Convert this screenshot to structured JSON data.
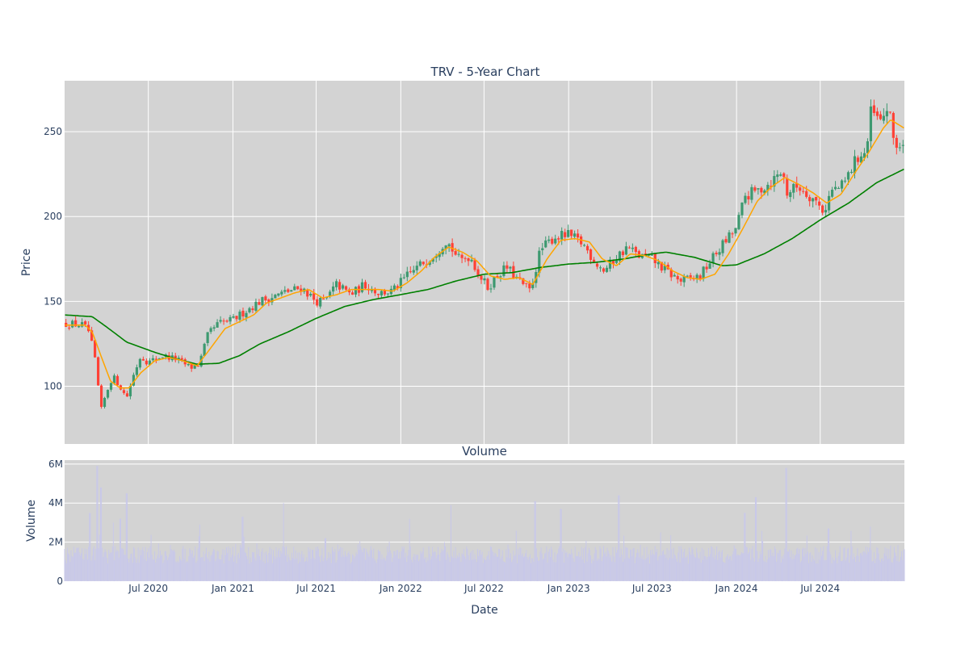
{
  "chart_data": {
    "type": "candlestick",
    "title": "TRV - 5-Year Chart",
    "subtitle": "Volume",
    "x_label": "Date",
    "y_label_price": "Price",
    "y_label_volume": "Volume",
    "x_range": [
      "2020-01-01",
      "2024-12-31"
    ],
    "x_ticks": [
      "2020-07-01",
      "2021-01-01",
      "2021-07-01",
      "2022-01-01",
      "2022-07-01",
      "2023-01-01",
      "2023-07-01",
      "2024-01-01",
      "2024-07-01"
    ],
    "x_tick_labels": [
      "Jul 2020",
      "Jan 2021",
      "Jul 2021",
      "Jan 2022",
      "Jul 2022",
      "Jan 2023",
      "Jul 2023",
      "Jan 2024",
      "Jul 2024"
    ],
    "price_range": [
      66,
      280
    ],
    "price_ticks": [
      100,
      150,
      200,
      250
    ],
    "volume_range": [
      0,
      6200000
    ],
    "volume_ticks": [
      0,
      2000000,
      4000000,
      6000000
    ],
    "volume_tick_labels": [
      "0",
      "2M",
      "4M",
      "6M"
    ],
    "grid": true,
    "colors": {
      "increasing": "#3d9970",
      "decreasing": "#ff4136",
      "ma_short": "#ffa500",
      "ma_long": "#008000",
      "volume": "#c8c8ea",
      "plot_bg": "#d3d3d3"
    },
    "price_anchors": [
      [
        "2020-01-02",
        137
      ],
      [
        "2020-02-10",
        136
      ],
      [
        "2020-02-24",
        132
      ],
      [
        "2020-03-10",
        112
      ],
      [
        "2020-03-20",
        85
      ],
      [
        "2020-04-01",
        96
      ],
      [
        "2020-04-15",
        106
      ],
      [
        "2020-05-01",
        100
      ],
      [
        "2020-05-15",
        93
      ],
      [
        "2020-06-01",
        108
      ],
      [
        "2020-06-15",
        118
      ],
      [
        "2020-07-01",
        114
      ],
      [
        "2020-08-01",
        118
      ],
      [
        "2020-09-01",
        116
      ],
      [
        "2020-10-01",
        111
      ],
      [
        "2020-10-20",
        113
      ],
      [
        "2020-11-09",
        131
      ],
      [
        "2020-12-01",
        137
      ],
      [
        "2021-01-01",
        139
      ],
      [
        "2021-02-01",
        145
      ],
      [
        "2021-03-01",
        150
      ],
      [
        "2021-04-01",
        153
      ],
      [
        "2021-05-01",
        156
      ],
      [
        "2021-06-01",
        158
      ],
      [
        "2021-07-01",
        150
      ],
      [
        "2021-07-20",
        150
      ],
      [
        "2021-08-15",
        160
      ],
      [
        "2021-09-15",
        154
      ],
      [
        "2021-10-15",
        160
      ],
      [
        "2021-11-15",
        155
      ],
      [
        "2021-12-15",
        156
      ],
      [
        "2022-01-15",
        165
      ],
      [
        "2022-02-15",
        172
      ],
      [
        "2022-03-15",
        178
      ],
      [
        "2022-04-10",
        186
      ],
      [
        "2022-05-10",
        174
      ],
      [
        "2022-06-01",
        177
      ],
      [
        "2022-06-20",
        166
      ],
      [
        "2022-07-10",
        158
      ],
      [
        "2022-08-01",
        166
      ],
      [
        "2022-08-20",
        170
      ],
      [
        "2022-09-15",
        162
      ],
      [
        "2022-10-10",
        156
      ],
      [
        "2022-11-01",
        180
      ],
      [
        "2022-12-01",
        188
      ],
      [
        "2023-01-01",
        189
      ],
      [
        "2023-02-01",
        184
      ],
      [
        "2023-03-01",
        173
      ],
      [
        "2023-03-20",
        168
      ],
      [
        "2023-04-15",
        176
      ],
      [
        "2023-05-10",
        182
      ],
      [
        "2023-06-01",
        177
      ],
      [
        "2023-07-01",
        175
      ],
      [
        "2023-08-01",
        168
      ],
      [
        "2023-09-01",
        162
      ],
      [
        "2023-10-01",
        164
      ],
      [
        "2023-10-15",
        165
      ],
      [
        "2023-11-01",
        172
      ],
      [
        "2023-12-01",
        183
      ],
      [
        "2024-01-01",
        193
      ],
      [
        "2024-01-20",
        212
      ],
      [
        "2024-02-15",
        215
      ],
      [
        "2024-03-15",
        220
      ],
      [
        "2024-04-10",
        227
      ],
      [
        "2024-04-20",
        214
      ],
      [
        "2024-05-15",
        218
      ],
      [
        "2024-06-15",
        211
      ],
      [
        "2024-07-10",
        203
      ],
      [
        "2024-07-25",
        215
      ],
      [
        "2024-08-20",
        218
      ],
      [
        "2024-09-20",
        235
      ],
      [
        "2024-10-10",
        238
      ],
      [
        "2024-10-20",
        262
      ],
      [
        "2024-11-10",
        255
      ],
      [
        "2024-11-25",
        265
      ],
      [
        "2024-12-10",
        243
      ],
      [
        "2024-12-31",
        240
      ]
    ],
    "ma_short_anchors": [
      [
        "2020-01-02",
        136
      ],
      [
        "2020-02-15",
        136
      ],
      [
        "2020-03-01",
        132
      ],
      [
        "2020-03-20",
        118
      ],
      [
        "2020-04-10",
        103
      ],
      [
        "2020-05-01",
        99
      ],
      [
        "2020-05-20",
        99
      ],
      [
        "2020-06-15",
        108
      ],
      [
        "2020-07-15",
        115
      ],
      [
        "2020-08-15",
        117
      ],
      [
        "2020-09-15",
        115
      ],
      [
        "2020-10-15",
        112
      ],
      [
        "2020-11-15",
        123
      ],
      [
        "2020-12-15",
        134
      ],
      [
        "2021-01-15",
        138
      ],
      [
        "2021-02-15",
        142
      ],
      [
        "2021-03-15",
        149
      ],
      [
        "2021-04-15",
        152
      ],
      [
        "2021-05-15",
        155
      ],
      [
        "2021-06-15",
        157
      ],
      [
        "2021-07-15",
        152
      ],
      [
        "2021-08-15",
        154
      ],
      [
        "2021-09-15",
        157
      ],
      [
        "2021-10-15",
        157
      ],
      [
        "2021-11-15",
        157
      ],
      [
        "2021-12-15",
        156
      ],
      [
        "2022-01-15",
        161
      ],
      [
        "2022-02-15",
        168
      ],
      [
        "2022-03-15",
        176
      ],
      [
        "2022-04-15",
        182
      ],
      [
        "2022-05-15",
        179
      ],
      [
        "2022-06-15",
        174
      ],
      [
        "2022-07-15",
        165
      ],
      [
        "2022-08-15",
        163
      ],
      [
        "2022-09-15",
        164
      ],
      [
        "2022-10-15",
        160
      ],
      [
        "2022-11-15",
        175
      ],
      [
        "2022-12-15",
        186
      ],
      [
        "2023-01-15",
        187
      ],
      [
        "2023-02-15",
        185
      ],
      [
        "2023-03-15",
        175
      ],
      [
        "2023-04-15",
        171
      ],
      [
        "2023-05-15",
        178
      ],
      [
        "2023-06-15",
        177
      ],
      [
        "2023-07-15",
        174
      ],
      [
        "2023-08-15",
        168
      ],
      [
        "2023-09-15",
        164
      ],
      [
        "2023-10-15",
        163
      ],
      [
        "2023-11-15",
        166
      ],
      [
        "2023-12-15",
        178
      ],
      [
        "2024-01-15",
        193
      ],
      [
        "2024-02-15",
        209
      ],
      [
        "2024-03-15",
        217
      ],
      [
        "2024-04-15",
        223
      ],
      [
        "2024-05-15",
        219
      ],
      [
        "2024-06-15",
        214
      ],
      [
        "2024-07-15",
        208
      ],
      [
        "2024-08-15",
        213
      ],
      [
        "2024-09-15",
        226
      ],
      [
        "2024-10-15",
        238
      ],
      [
        "2024-11-15",
        252
      ],
      [
        "2024-12-01",
        257
      ],
      [
        "2024-12-31",
        252
      ]
    ],
    "ma_long_anchors": [
      [
        "2020-01-02",
        142
      ],
      [
        "2020-03-01",
        141
      ],
      [
        "2020-04-01",
        135
      ],
      [
        "2020-05-15",
        126
      ],
      [
        "2020-07-15",
        120
      ],
      [
        "2020-09-01",
        116
      ],
      [
        "2020-10-15",
        113
      ],
      [
        "2020-12-01",
        113.5
      ],
      [
        "2021-01-15",
        118
      ],
      [
        "2021-03-01",
        125
      ],
      [
        "2021-05-01",
        132
      ],
      [
        "2021-07-01",
        140
      ],
      [
        "2021-09-01",
        147
      ],
      [
        "2021-11-01",
        151
      ],
      [
        "2022-01-01",
        154
      ],
      [
        "2022-03-01",
        157
      ],
      [
        "2022-05-01",
        162
      ],
      [
        "2022-07-01",
        166
      ],
      [
        "2022-09-01",
        167
      ],
      [
        "2022-11-01",
        170
      ],
      [
        "2023-01-01",
        172
      ],
      [
        "2023-03-01",
        173
      ],
      [
        "2023-05-01",
        175
      ],
      [
        "2023-07-01",
        178
      ],
      [
        "2023-08-01",
        179
      ],
      [
        "2023-10-01",
        176
      ],
      [
        "2023-12-01",
        171
      ],
      [
        "2024-01-01",
        171.5
      ],
      [
        "2024-03-01",
        178
      ],
      [
        "2024-05-01",
        187
      ],
      [
        "2024-07-01",
        198
      ],
      [
        "2024-09-01",
        208
      ],
      [
        "2024-11-01",
        220
      ],
      [
        "2024-12-31",
        228
      ]
    ],
    "volume_spikes": [
      [
        "2020-02-25",
        3500000
      ],
      [
        "2020-03-12",
        5900000
      ],
      [
        "2020-03-20",
        4800000
      ],
      [
        "2020-04-16",
        3000000
      ],
      [
        "2020-05-01",
        3200000
      ],
      [
        "2020-05-15",
        4500000
      ],
      [
        "2020-10-21",
        2900000
      ],
      [
        "2021-01-22",
        3300000
      ],
      [
        "2021-04-21",
        4000000
      ],
      [
        "2021-07-21",
        2200000
      ],
      [
        "2022-01-20",
        3200000
      ],
      [
        "2022-04-20",
        3900000
      ],
      [
        "2022-10-20",
        4100000
      ],
      [
        "2022-12-15",
        3700000
      ],
      [
        "2023-04-20",
        4400000
      ],
      [
        "2023-07-20",
        2500000
      ],
      [
        "2024-01-19",
        3500000
      ],
      [
        "2024-02-12",
        4300000
      ],
      [
        "2024-04-18",
        5800000
      ],
      [
        "2024-07-19",
        2700000
      ],
      [
        "2024-10-18",
        2800000
      ]
    ]
  }
}
